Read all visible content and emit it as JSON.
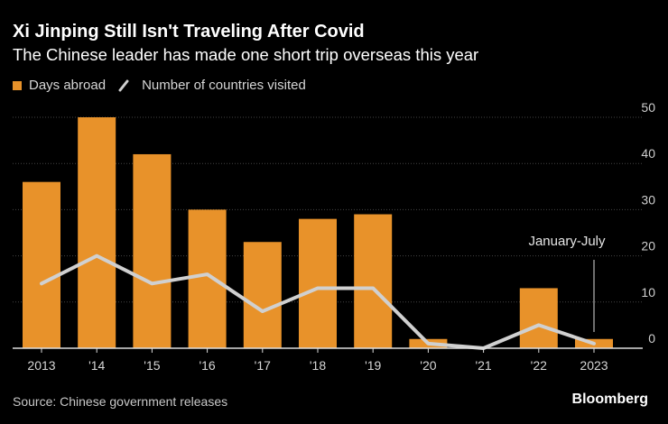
{
  "header": {
    "title": "Xi Jinping Still Isn't Traveling After Covid",
    "subtitle": "The Chinese leader has made one short trip overseas this year"
  },
  "legend": {
    "bar_label": "Days abroad",
    "line_label": "Number of countries visited"
  },
  "footer": {
    "source": "Source: Chinese government releases",
    "brand": "Bloomberg"
  },
  "colors": {
    "bar": "#e8922a",
    "line": "#d0d0d0",
    "grid": "#444444",
    "axis": "#dddddd"
  },
  "chart_data": {
    "type": "bar",
    "title": "Xi Jinping Still Isn't Traveling After Covid",
    "categories": [
      "2013",
      "'14",
      "'15",
      "'16",
      "'17",
      "'18",
      "'19",
      "'20",
      "'21",
      "'22",
      "2023"
    ],
    "series": [
      {
        "name": "Days abroad",
        "type": "bar",
        "values": [
          36,
          50,
          42,
          30,
          23,
          28,
          29,
          2,
          0,
          13,
          2
        ]
      },
      {
        "name": "Number of countries visited",
        "type": "line",
        "values": [
          14,
          20,
          14,
          16,
          8,
          13,
          13,
          1,
          0,
          5,
          1
        ]
      }
    ],
    "yticks": [
      0,
      10,
      20,
      30,
      40,
      50
    ],
    "ylim": [
      0,
      50
    ],
    "y_axis_side": "right",
    "annotation": {
      "text": "January-July",
      "category": "2023"
    },
    "xlabel": "",
    "ylabel": ""
  }
}
